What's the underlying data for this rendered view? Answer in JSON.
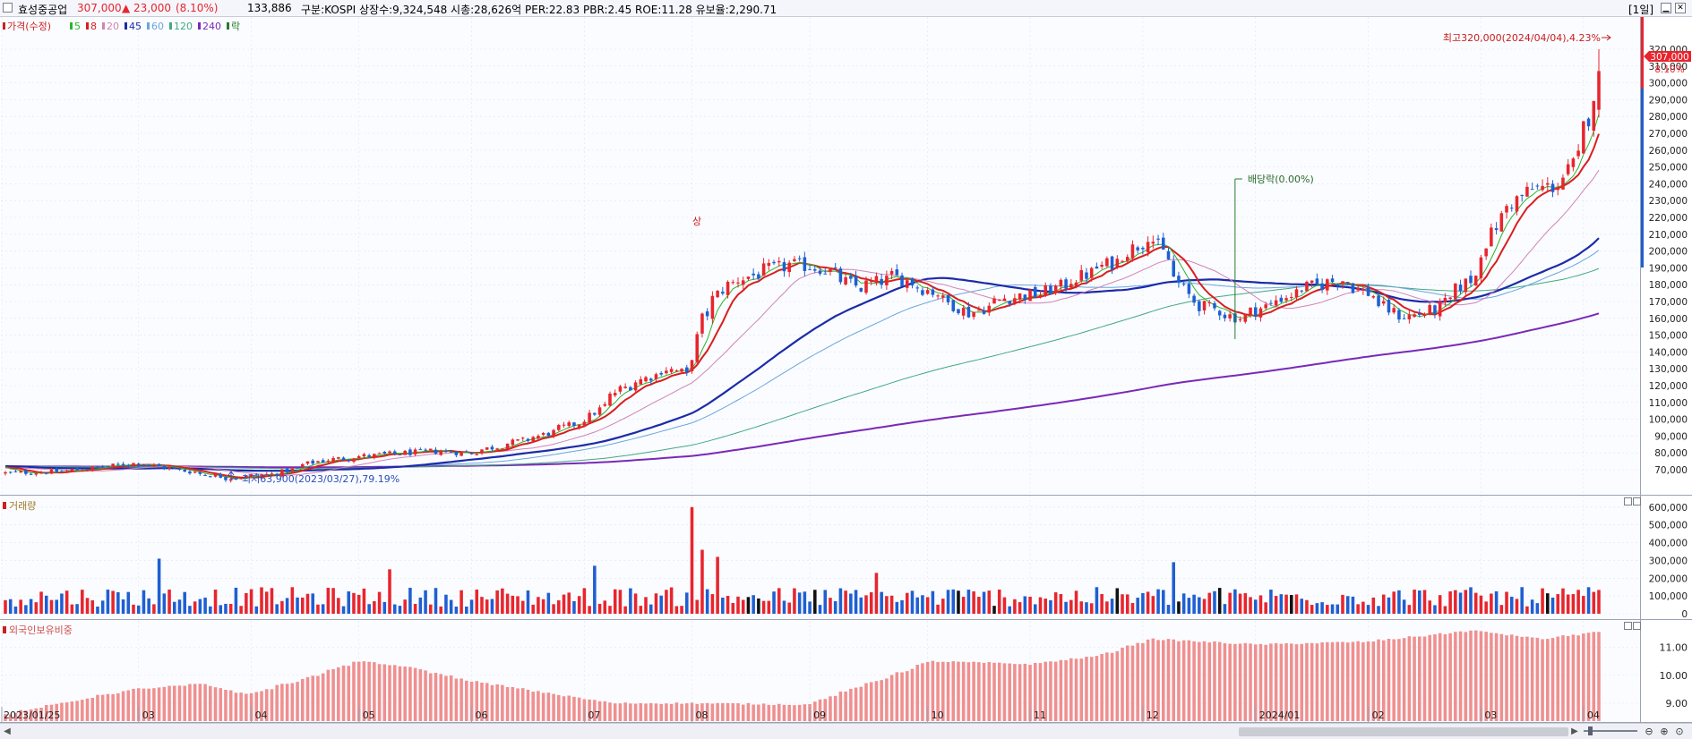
{
  "header": {
    "name": "효성중공업",
    "price": "307,000",
    "change": "▲ 23,000",
    "change_pct": "(8.10%)",
    "volume": "133,886",
    "info": "구분:KOSPI 상장수:9,324,548 시총:28,626억 PER:22.83 PBR:2.45 ROE:11.28 유보율:2,290.71",
    "period": "[1일]"
  },
  "colors": {
    "up": "#e8252d",
    "down": "#1f5fd1",
    "ma5": "#2bb52b",
    "ma8": "#d81f1f",
    "ma20": "#d283b5",
    "ma45": "#1c2ba8",
    "ma60": "#6aa6dc",
    "ma120": "#43a882",
    "ma240": "#7a29b8",
    "foreign": "#f08f8f",
    "bg": "#fafcff",
    "grid": "#dfe4ee"
  },
  "legend": [
    {
      "label": "가격(수정)",
      "color": "#cc2020"
    },
    {
      "label": "5",
      "color": "#2bb52b"
    },
    {
      "label": "8",
      "color": "#d81f1f"
    },
    {
      "label": "20",
      "color": "#d283b5"
    },
    {
      "label": "45",
      "color": "#1c2ba8"
    },
    {
      "label": "60",
      "color": "#6aa6dc"
    },
    {
      "label": "120",
      "color": "#43a882"
    },
    {
      "label": "240",
      "color": "#7a29b8"
    },
    {
      "label": "락",
      "color": "#2a7a2a"
    }
  ],
  "annotations": {
    "high": "최고320,000(2024/04/04),4.23%",
    "low": "최저63,900(2023/03/27),79.19%",
    "ex_dividend": "배당락(0.00%)",
    "upper_limit": "상",
    "price_tag": "307,000",
    "pct_tag": "8.10%"
  },
  "chart_data": [
    {
      "type": "candlestick",
      "title": "가격(수정)",
      "ylim": [
        60000,
        330000
      ],
      "y_ticks": [
        "70,000",
        "80,000",
        "90,000",
        "100,000",
        "110,000",
        "120,000",
        "130,000",
        "140,000",
        "150,000",
        "160,000",
        "170,000",
        "180,000",
        "190,000",
        "200,000",
        "210,000",
        "220,000",
        "230,000",
        "240,000",
        "250,000",
        "260,000",
        "270,000",
        "280,000",
        "290,000",
        "300,000",
        "310,000",
        "320,000"
      ],
      "x_labels": [
        "2023/01/25",
        "03",
        "04",
        "05",
        "06",
        "07",
        "08",
        "09",
        "10",
        "11",
        "12",
        "2024/01",
        "02",
        "03",
        "04"
      ],
      "x_label_dates": [
        "2023-01-25",
        "2023-03-02",
        "2023-04-03",
        "2023-05-02",
        "2023-06-01",
        "2023-07-03",
        "2023-08-01",
        "2023-09-01",
        "2023-10-04",
        "2023-11-01",
        "2023-12-01",
        "2024-01-02",
        "2024-02-01",
        "2024-03-04",
        "2024-04-01"
      ],
      "anchors": [
        {
          "date": "2023-01-25",
          "close": 68000
        },
        {
          "date": "2023-02-10",
          "close": 69000
        },
        {
          "date": "2023-03-02",
          "close": 74000
        },
        {
          "date": "2023-03-27",
          "close": 65000
        },
        {
          "date": "2023-04-10",
          "close": 68000
        },
        {
          "date": "2023-04-20",
          "close": 75000
        },
        {
          "date": "2023-05-02",
          "close": 78000
        },
        {
          "date": "2023-05-22",
          "close": 81000
        },
        {
          "date": "2023-06-01",
          "close": 80000
        },
        {
          "date": "2023-06-20",
          "close": 90000
        },
        {
          "date": "2023-07-03",
          "close": 100000
        },
        {
          "date": "2023-07-12",
          "close": 118000
        },
        {
          "date": "2023-07-25",
          "close": 130000
        },
        {
          "date": "2023-07-31",
          "close": 126000
        },
        {
          "date": "2023-08-03",
          "close": 160000
        },
        {
          "date": "2023-08-10",
          "close": 180000
        },
        {
          "date": "2023-08-20",
          "close": 188000
        },
        {
          "date": "2023-08-28",
          "close": 192000
        },
        {
          "date": "2023-09-05",
          "close": 190000
        },
        {
          "date": "2023-09-15",
          "close": 178000
        },
        {
          "date": "2023-09-25",
          "close": 185000
        },
        {
          "date": "2023-10-06",
          "close": 175000
        },
        {
          "date": "2023-10-15",
          "close": 162000
        },
        {
          "date": "2023-10-25",
          "close": 172000
        },
        {
          "date": "2023-11-05",
          "close": 175000
        },
        {
          "date": "2023-11-15",
          "close": 185000
        },
        {
          "date": "2023-11-25",
          "close": 195000
        },
        {
          "date": "2023-12-04",
          "close": 210000
        },
        {
          "date": "2023-12-08",
          "close": 195000
        },
        {
          "date": "2023-12-15",
          "close": 170000
        },
        {
          "date": "2023-12-28",
          "close": 160000
        },
        {
          "date": "2024-01-05",
          "close": 168000
        },
        {
          "date": "2024-01-15",
          "close": 178000
        },
        {
          "date": "2024-01-25",
          "close": 183000
        },
        {
          "date": "2024-02-01",
          "close": 175000
        },
        {
          "date": "2024-02-10",
          "close": 160000
        },
        {
          "date": "2024-02-20",
          "close": 165000
        },
        {
          "date": "2024-03-01",
          "close": 185000
        },
        {
          "date": "2024-03-08",
          "close": 220000
        },
        {
          "date": "2024-03-15",
          "close": 235000
        },
        {
          "date": "2024-03-25",
          "close": 240000
        },
        {
          "date": "2024-03-29",
          "close": 255000
        },
        {
          "date": "2024-04-02",
          "close": 280000
        },
        {
          "date": "2024-04-04",
          "close": 307000
        }
      ],
      "moving_averages": [
        {
          "period": 5,
          "color": "#2bb52b",
          "width": 1
        },
        {
          "period": 8,
          "color": "#d81f1f",
          "width": 2
        },
        {
          "period": 20,
          "color": "#d283b5",
          "width": 1
        },
        {
          "period": 45,
          "color": "#1c2ba8",
          "width": 2.2
        },
        {
          "period": 60,
          "color": "#6aa6dc",
          "width": 1
        },
        {
          "period": 120,
          "color": "#43a882",
          "width": 1
        },
        {
          "period": 240,
          "color": "#7a29b8",
          "width": 2
        }
      ]
    },
    {
      "type": "bar",
      "title": "거래량",
      "ylim": [
        0,
        650000
      ],
      "y_ticks": [
        "0",
        "100,000",
        "200,000",
        "300,000",
        "400,000",
        "500,000",
        "600,000"
      ],
      "values_description": "daily volume, typically 40,000-150,000 with spikes near 310,000 (2023-03), 600,000 (2023-08-01), 290,000 (2023-12)"
    },
    {
      "type": "bar",
      "title": "외국인보유비중",
      "ylim": [
        8.5,
        11.9
      ],
      "y_ticks": [
        "9.00",
        "10.00",
        "11.00"
      ],
      "anchors": [
        {
          "date": "2023-01-25",
          "value": 8.6
        },
        {
          "date": "2023-03-01",
          "value": 9.5
        },
        {
          "date": "2023-03-20",
          "value": 9.7
        },
        {
          "date": "2023-04-01",
          "value": 9.3
        },
        {
          "date": "2023-04-20",
          "value": 10.0
        },
        {
          "date": "2023-05-01",
          "value": 10.5
        },
        {
          "date": "2023-05-15",
          "value": 10.3
        },
        {
          "date": "2023-06-01",
          "value": 9.8
        },
        {
          "date": "2023-07-10",
          "value": 9.0
        },
        {
          "date": "2023-08-01",
          "value": 9.0
        },
        {
          "date": "2023-09-01",
          "value": 8.95
        },
        {
          "date": "2023-09-20",
          "value": 9.8
        },
        {
          "date": "2023-10-05",
          "value": 10.5
        },
        {
          "date": "2023-11-01",
          "value": 10.4
        },
        {
          "date": "2023-11-20",
          "value": 10.7
        },
        {
          "date": "2023-12-04",
          "value": 11.3
        },
        {
          "date": "2024-01-02",
          "value": 11.1
        },
        {
          "date": "2024-02-01",
          "value": 11.2
        },
        {
          "date": "2024-03-01",
          "value": 11.6
        },
        {
          "date": "2024-03-20",
          "value": 11.3
        },
        {
          "date": "2024-04-04",
          "value": 11.55
        }
      ]
    }
  ]
}
